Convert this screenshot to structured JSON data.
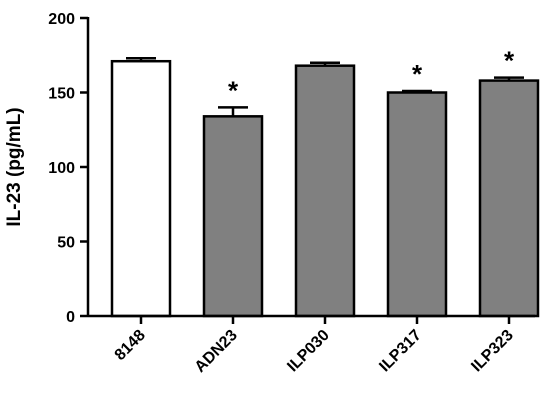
{
  "chart_data": {
    "type": "bar",
    "ylabel": "IL-23 (pg/mL)",
    "ylim": [
      0,
      200
    ],
    "yticks": [
      0,
      50,
      100,
      150,
      200
    ],
    "categories": [
      "8148",
      "ADN23",
      "ILP030",
      "ILP317",
      "ILP323"
    ],
    "values": [
      171,
      134,
      168,
      150,
      158
    ],
    "errors": [
      2,
      6,
      2,
      1,
      2
    ],
    "significance": [
      "",
      "*",
      "",
      "*",
      "*"
    ],
    "colors": {
      "control": "#ffffff",
      "treated": "#808080",
      "stroke": "#000000"
    }
  }
}
